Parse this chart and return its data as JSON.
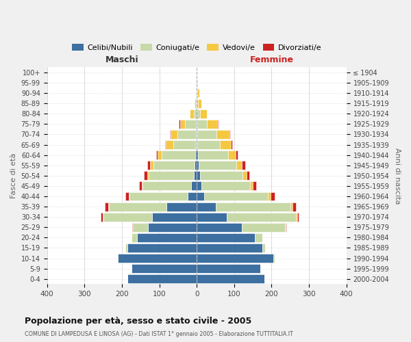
{
  "age_groups": [
    "0-4",
    "5-9",
    "10-14",
    "15-19",
    "20-24",
    "25-29",
    "30-34",
    "35-39",
    "40-44",
    "45-49",
    "50-54",
    "55-59",
    "60-64",
    "65-69",
    "70-74",
    "75-79",
    "80-84",
    "85-89",
    "90-94",
    "95-99",
    "100+"
  ],
  "birth_years": [
    "2000-2004",
    "1995-1999",
    "1990-1994",
    "1985-1989",
    "1980-1984",
    "1975-1979",
    "1970-1974",
    "1965-1969",
    "1960-1964",
    "1955-1959",
    "1950-1954",
    "1945-1949",
    "1940-1944",
    "1935-1939",
    "1930-1934",
    "1925-1929",
    "1920-1924",
    "1915-1919",
    "1910-1914",
    "1905-1909",
    "≤ 1904"
  ],
  "male": {
    "celibi": [
      185,
      175,
      210,
      185,
      160,
      130,
      120,
      80,
      25,
      15,
      8,
      6,
      4,
      2,
      2,
      2,
      0,
      0,
      0,
      0,
      0
    ],
    "coniugati": [
      0,
      0,
      3,
      5,
      15,
      40,
      130,
      155,
      155,
      130,
      120,
      110,
      90,
      60,
      50,
      30,
      8,
      3,
      2,
      0,
      0
    ],
    "vedovi": [
      0,
      0,
      0,
      0,
      0,
      0,
      2,
      2,
      2,
      2,
      5,
      8,
      10,
      20,
      18,
      12,
      10,
      2,
      1,
      0,
      0
    ],
    "divorziati": [
      0,
      0,
      0,
      0,
      0,
      2,
      5,
      8,
      8,
      8,
      8,
      8,
      5,
      2,
      2,
      4,
      0,
      0,
      0,
      0,
      0
    ]
  },
  "female": {
    "nubili": [
      180,
      170,
      205,
      175,
      155,
      120,
      80,
      50,
      20,
      12,
      8,
      6,
      4,
      2,
      2,
      2,
      0,
      0,
      0,
      0,
      0
    ],
    "coniugate": [
      0,
      0,
      3,
      8,
      20,
      115,
      185,
      200,
      170,
      130,
      115,
      100,
      80,
      60,
      50,
      25,
      8,
      3,
      2,
      0,
      0
    ],
    "vedove": [
      0,
      0,
      0,
      0,
      0,
      2,
      3,
      5,
      8,
      8,
      10,
      15,
      20,
      30,
      35,
      30,
      20,
      10,
      5,
      2,
      0
    ],
    "divorziate": [
      0,
      0,
      0,
      0,
      0,
      2,
      5,
      10,
      10,
      8,
      8,
      8,
      5,
      2,
      2,
      2,
      0,
      0,
      0,
      0,
      0
    ]
  },
  "color_celibi": "#3d6fa0",
  "color_coniugati": "#c8d9a8",
  "color_vedovi": "#f5c842",
  "color_divorziati": "#cc2222",
  "title": "Popolazione per età, sesso e stato civile - 2005",
  "subtitle": "COMUNE DI LAMPEDUSA E LINOSA (AG) - Dati ISTAT 1° gennaio 2005 - Elaborazione TUTTITALIA.IT",
  "xlabel_left": "Maschi",
  "xlabel_right": "Femmine",
  "ylabel_left": "Fasce di età",
  "ylabel_right": "Anni di nascita",
  "xlim": 400,
  "bg_color": "#f0f0f0",
  "plot_bg": "#ffffff"
}
